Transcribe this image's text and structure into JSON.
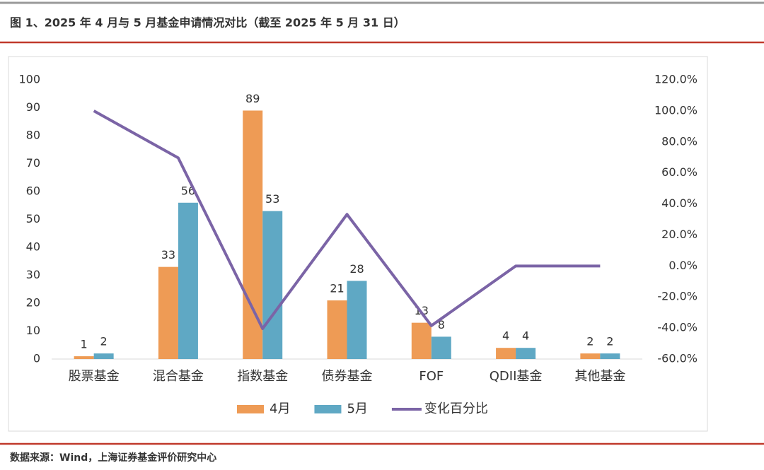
{
  "header": {
    "title": "图 1、2025 年 4 月与 5 月基金申请情况对比（截至 2025 年 5 月 31 日）"
  },
  "chart_data": {
    "type": "bar",
    "categories": [
      "股票基金",
      "混合基金",
      "指数基金",
      "债券基金",
      "FOF",
      "QDII基金",
      "其他基金"
    ],
    "series": [
      {
        "name": "4月",
        "color": "#ee9b55",
        "values": [
          1,
          33,
          89,
          21,
          13,
          4,
          2
        ]
      },
      {
        "name": "5月",
        "color": "#5fa8c4",
        "values": [
          2,
          56,
          53,
          28,
          8,
          4,
          2
        ]
      },
      {
        "name": "变化百分比",
        "type": "line",
        "axis": "y2",
        "color": "#7b64a6",
        "values": [
          100,
          69.7,
          -40.4,
          33.3,
          -38.5,
          0,
          0
        ]
      }
    ],
    "ylim": [
      0,
      100
    ],
    "yticks": [
      0,
      10,
      20,
      30,
      40,
      50,
      60,
      70,
      80,
      90,
      100
    ],
    "y2lim": [
      -60,
      120
    ],
    "y2ticks": [
      {
        "value": -60,
        "label": "-60.0%"
      },
      {
        "value": -40,
        "label": "-40.0%"
      },
      {
        "value": -20,
        "label": "-20.0%"
      },
      {
        "value": 0,
        "label": "0.0%"
      },
      {
        "value": 20,
        "label": "20.0%"
      },
      {
        "value": 40,
        "label": "40.0%"
      },
      {
        "value": 60,
        "label": "60.0%"
      },
      {
        "value": 80,
        "label": "80.0%"
      },
      {
        "value": 100,
        "label": "100.0%"
      },
      {
        "value": 120,
        "label": "120.0%"
      }
    ],
    "grid": false,
    "legend": "bottom"
  },
  "footer": {
    "source": "数据来源：Wind，上海证券基金评价研究中心"
  }
}
